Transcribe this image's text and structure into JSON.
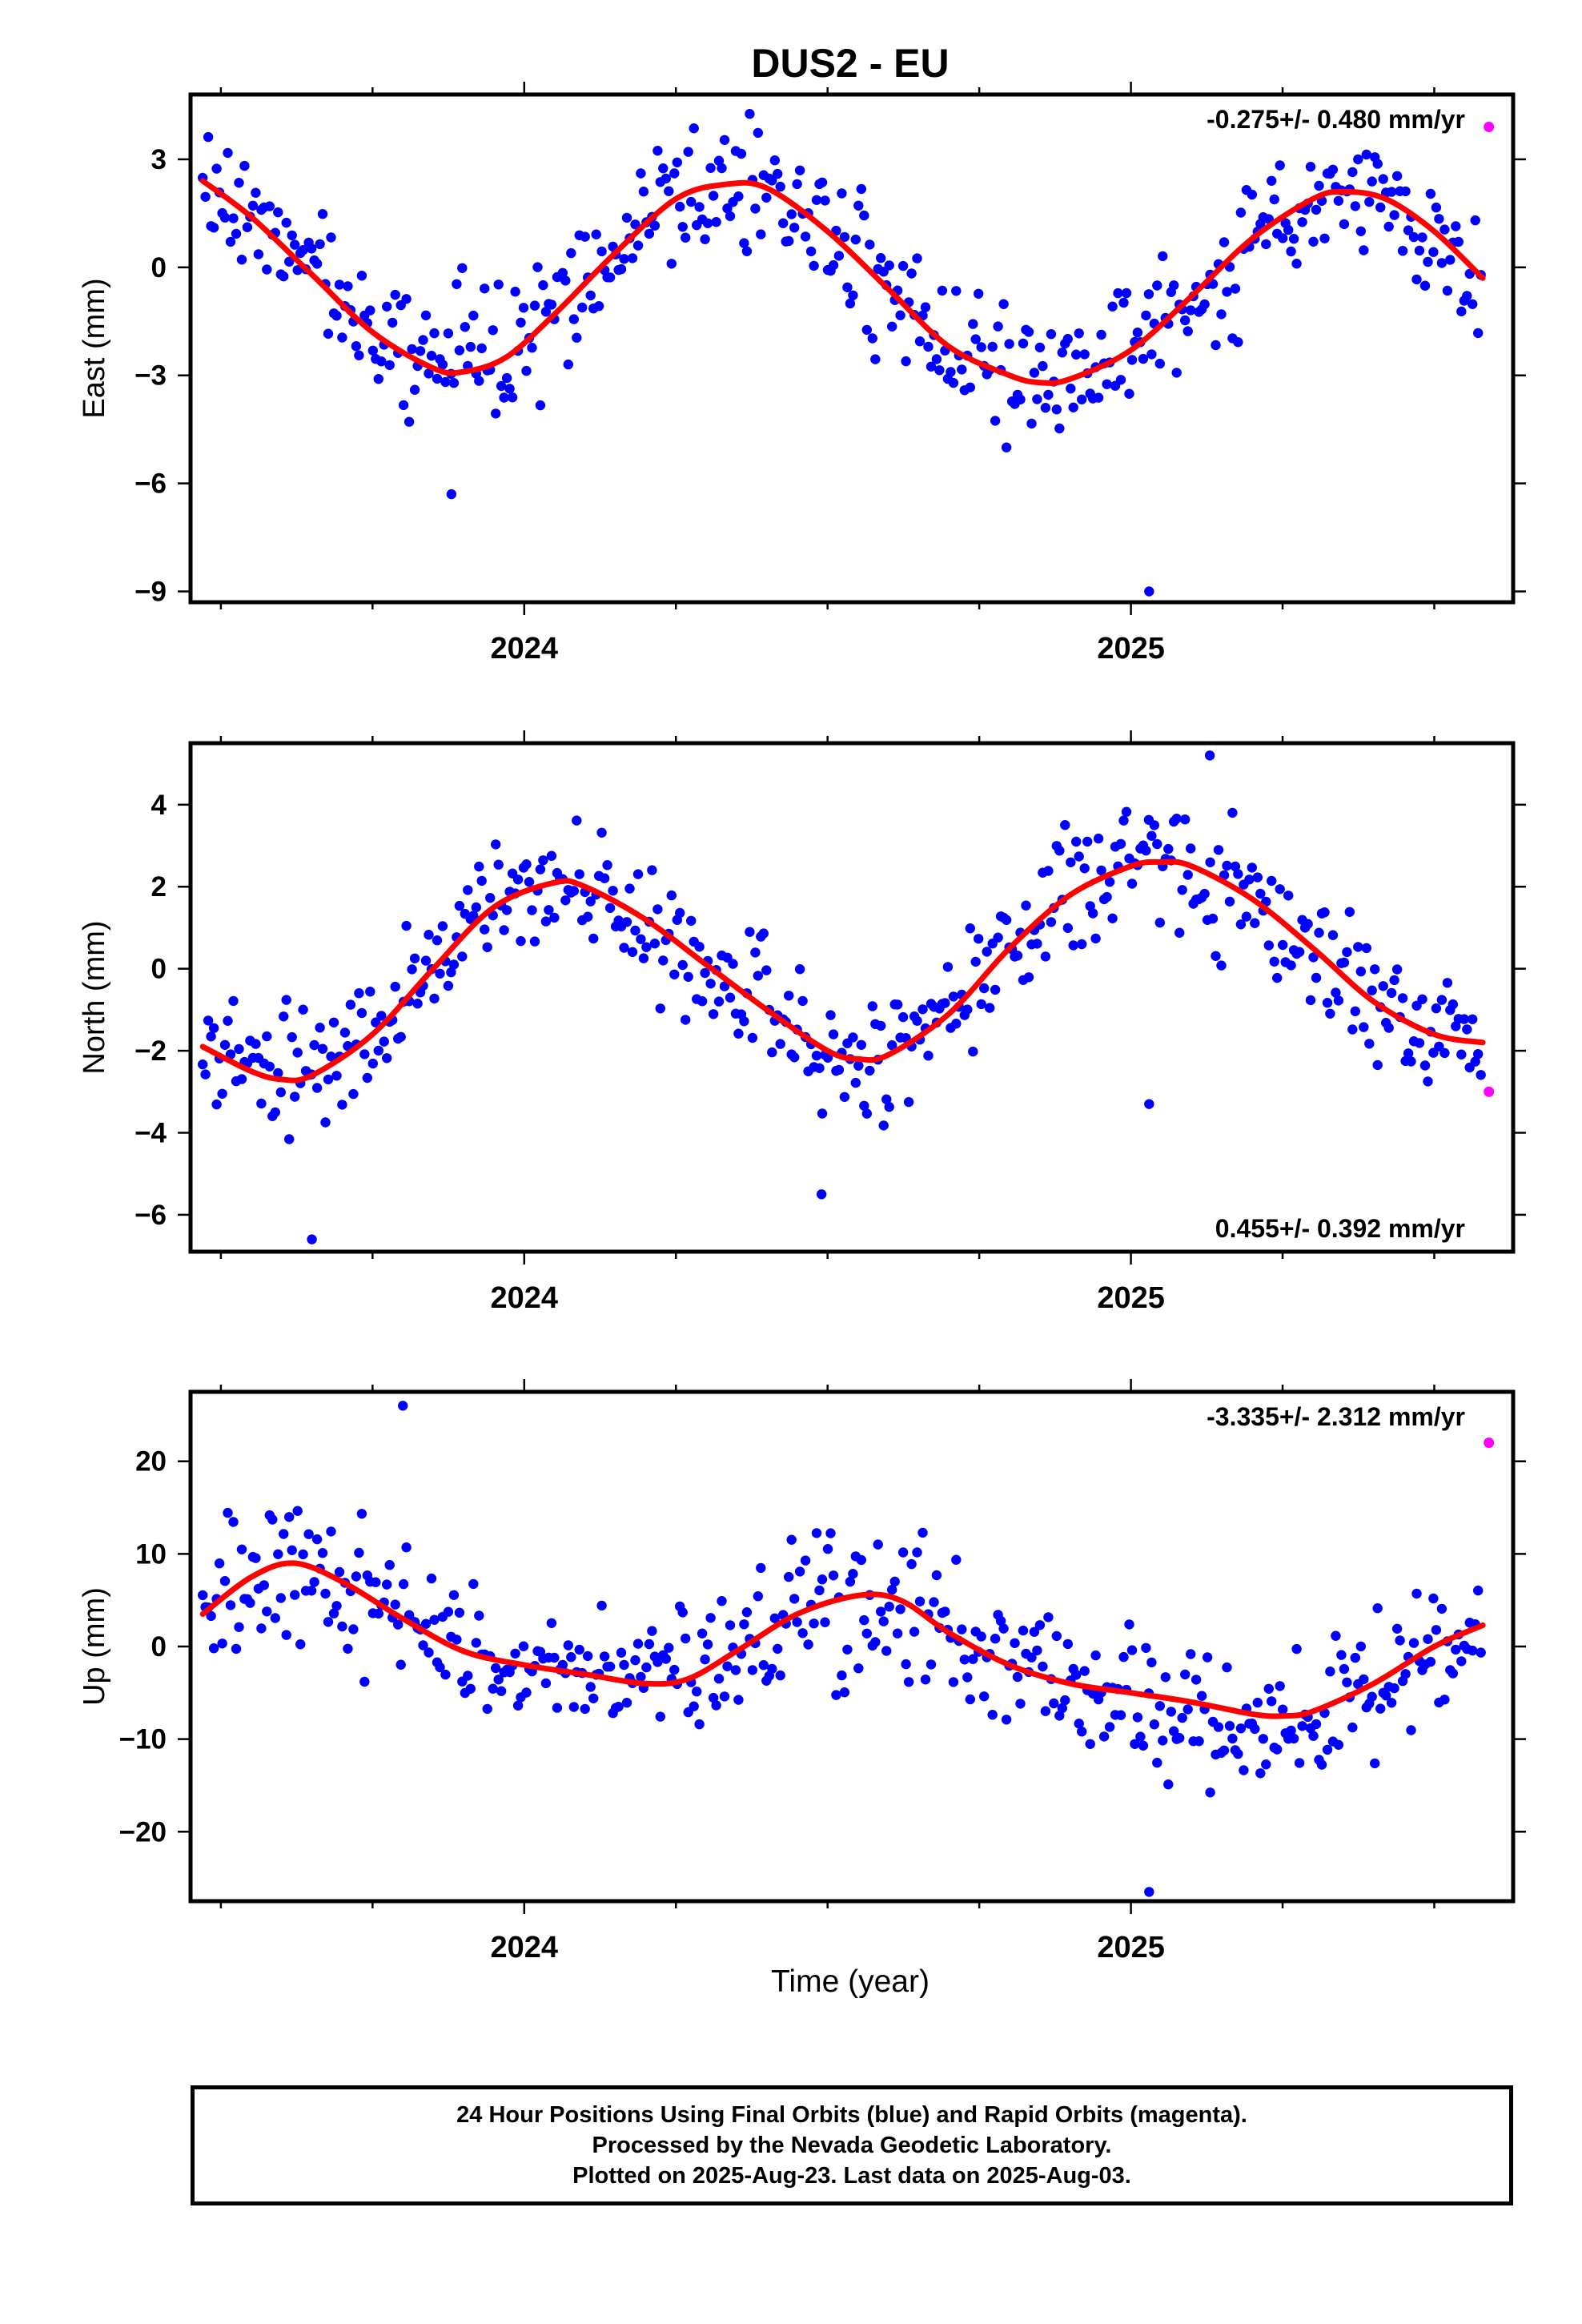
{
  "chart_data": {
    "title": "DUS2 - EU",
    "xlabel": "Time (year)",
    "x_tick_labels": [
      "2024",
      "2025"
    ],
    "xlim": [
      2023.45,
      2025.63
    ],
    "colors": {
      "final": "#0000ff",
      "rapid": "#ff00ff",
      "fit": "#ff0000"
    },
    "panels": [
      {
        "type": "scatter",
        "ylabel": "East (mm)",
        "rate_label": "-0.275+/- 0.480 mm/yr",
        "rate_position": "top-right",
        "ylim": [
          -9.3,
          4.8
        ],
        "yticks": [
          3,
          0,
          -3,
          -6,
          -9
        ],
        "ytick_labels": [
          "3",
          "0",
          "−3",
          "−6",
          "−9"
        ],
        "fit": {
          "x": [
            2023.47,
            2023.55,
            2023.65,
            2023.75,
            2023.85,
            2023.9,
            2023.97,
            2024.05,
            2024.15,
            2024.25,
            2024.33,
            2024.4,
            2024.5,
            2024.6,
            2024.7,
            2024.8,
            2024.85,
            2024.9,
            2025.0,
            2025.1,
            2025.2,
            2025.3,
            2025.35,
            2025.42,
            2025.5,
            2025.58
          ],
          "y": [
            2.4,
            1.4,
            -0.2,
            -1.8,
            -2.8,
            -2.9,
            -2.5,
            -1.3,
            0.4,
            1.9,
            2.3,
            2.2,
            1.0,
            -0.6,
            -2.2,
            -3.0,
            -3.2,
            -3.1,
            -2.3,
            -0.8,
            0.8,
            1.9,
            2.1,
            1.9,
            1.0,
            -0.3
          ]
        },
        "outliers": {
          "x": [
            2023.88,
            2025.03
          ],
          "y": [
            -6.3,
            -9.0
          ]
        },
        "rapid": {
          "x": [
            2025.59
          ],
          "y": [
            3.9
          ]
        }
      },
      {
        "type": "scatter",
        "ylabel": "North (mm)",
        "rate_label": "0.455+/- 0.392 mm/yr",
        "rate_position": "bottom-right",
        "ylim": [
          -6.9,
          5.5
        ],
        "yticks": [
          4,
          2,
          0,
          -2,
          -4,
          -6
        ],
        "ytick_labels": [
          "4",
          "2",
          "0",
          "−2",
          "−4",
          "−6"
        ],
        "fit": {
          "x": [
            2023.47,
            2023.55,
            2023.6,
            2023.65,
            2023.75,
            2023.85,
            2023.95,
            2024.05,
            2024.1,
            2024.2,
            2024.3,
            2024.4,
            2024.5,
            2024.55,
            2024.6,
            2024.7,
            2024.8,
            2024.9,
            2025.0,
            2025.05,
            2025.1,
            2025.2,
            2025.3,
            2025.4,
            2025.5,
            2025.58
          ],
          "y": [
            -1.9,
            -2.5,
            -2.7,
            -2.6,
            -1.6,
            0.0,
            1.5,
            2.1,
            2.0,
            1.2,
            0.1,
            -1.0,
            -2.0,
            -2.2,
            -2.1,
            -1.1,
            0.5,
            1.8,
            2.5,
            2.6,
            2.5,
            1.7,
            0.5,
            -0.8,
            -1.6,
            -1.8
          ]
        },
        "outliers": {
          "x": [
            2023.65,
            2024.49,
            2025.03,
            2025.13
          ],
          "y": [
            -6.6,
            -5.5,
            -3.3,
            5.2
          ]
        },
        "rapid": {
          "x": [
            2025.59
          ],
          "y": [
            -3.0
          ]
        }
      },
      {
        "type": "scatter",
        "ylabel": "Up (mm)",
        "rate_label": "-3.335+/- 2.312 mm/yr",
        "rate_position": "top-right",
        "ylim": [
          -27.5,
          27.5
        ],
        "yticks": [
          20,
          10,
          0,
          -10,
          -20
        ],
        "ytick_labels": [
          "20",
          "10",
          "0",
          "−10",
          "−20"
        ],
        "fit": {
          "x": [
            2023.47,
            2023.55,
            2023.62,
            2023.7,
            2023.8,
            2023.9,
            2024.0,
            2024.1,
            2024.2,
            2024.27,
            2024.35,
            2024.45,
            2024.55,
            2024.62,
            2024.7,
            2024.8,
            2024.9,
            2025.0,
            2025.1,
            2025.2,
            2025.25,
            2025.3,
            2025.4,
            2025.5,
            2025.58
          ],
          "y": [
            3.5,
            7.5,
            9.0,
            7.0,
            3.0,
            -0.5,
            -2.0,
            -3.0,
            -4.0,
            -3.5,
            -0.5,
            3.5,
            5.5,
            5.0,
            1.5,
            -2.0,
            -4.0,
            -5.0,
            -6.0,
            -7.3,
            -7.5,
            -7.0,
            -4.0,
            0.0,
            2.3
          ]
        },
        "outliers": {
          "x": [
            2023.8,
            2025.03
          ],
          "y": [
            26.0,
            -26.5
          ]
        },
        "rapid": {
          "x": [
            2025.59
          ],
          "y": [
            22.0
          ]
        }
      }
    ]
  },
  "footer": {
    "line1": "24 Hour Positions Using Final Orbits (blue) and Rapid Orbits (magenta).",
    "line2": "Processed by the Nevada Geodetic Laboratory.",
    "line3": "Plotted on 2025-Aug-23. Last data on 2025-Aug-03."
  }
}
